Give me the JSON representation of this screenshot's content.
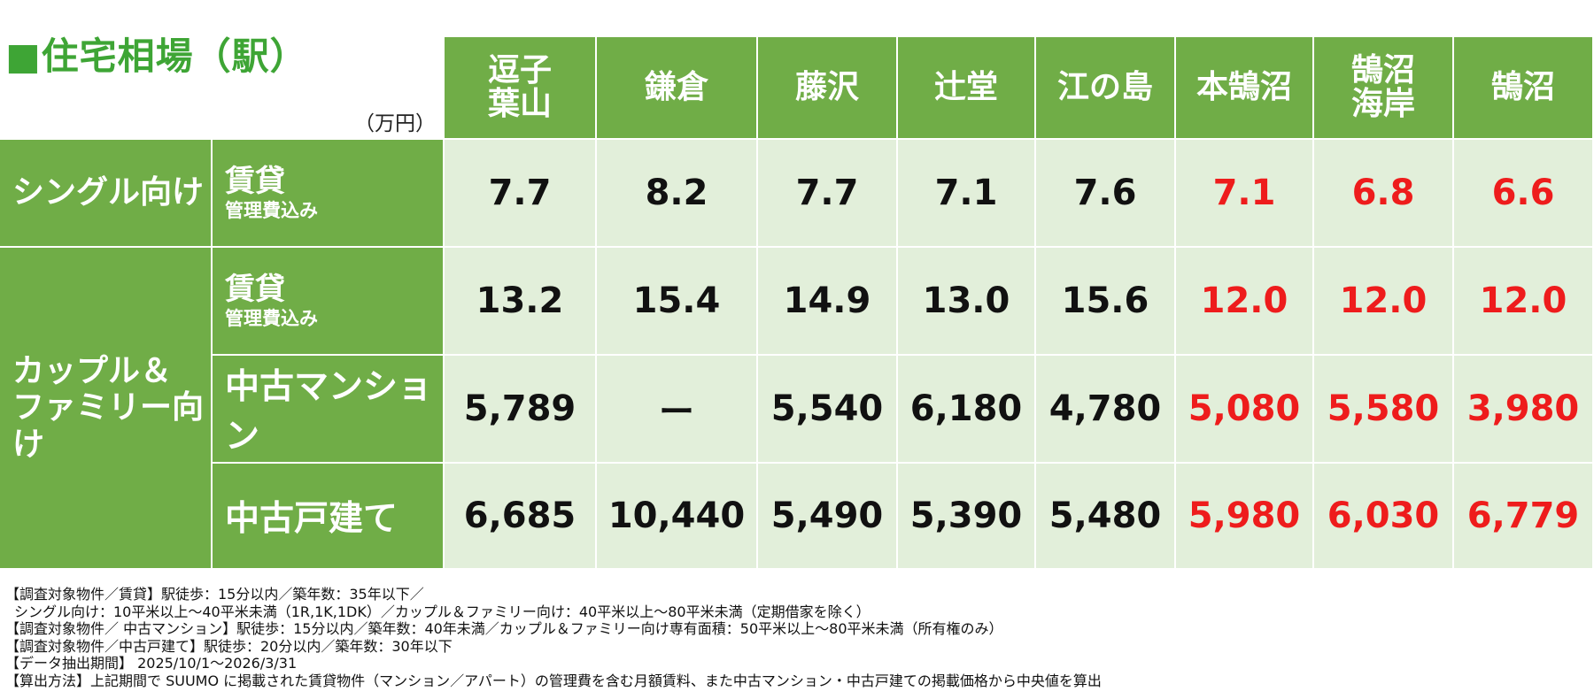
{
  "title": "■住宅相場（駅）",
  "unit": "（万円）",
  "stations": [
    "逗子\n葉山",
    "鎌倉",
    "藤沢",
    "辻堂",
    "江の島",
    "本鵠沼",
    "鵠沼\n海岸",
    "鵠沼"
  ],
  "row_groups": {
    "single": "シングル向け",
    "family": "カップル＆\nファミリー向け"
  },
  "row_labels": {
    "rent_top": "賃貸",
    "rent_sub": "管理費込み",
    "mansion": "中古マンション",
    "house": "中古戸建て"
  },
  "rows": {
    "single_rent": [
      "7.7",
      "8.2",
      "7.7",
      "7.1",
      "7.6",
      "7.1",
      "6.8",
      "6.6"
    ],
    "family_rent": [
      "13.2",
      "15.4",
      "14.9",
      "13.0",
      "15.6",
      "12.0",
      "12.0",
      "12.0"
    ],
    "used_mansion": [
      "5,789",
      "ー",
      "5,540",
      "6,180",
      "4,780",
      "5,080",
      "5,580",
      "3,980"
    ],
    "used_house": [
      "6,685",
      "10,440",
      "5,490",
      "5,390",
      "5,480",
      "5,980",
      "6,030",
      "6,779"
    ]
  },
  "colors": {
    "header_green": "#70ad47",
    "cell_bg": "#e2efda",
    "title_green": "#3ea535",
    "highlight_red": "#ee1c1c"
  },
  "notes": [
    "【調査対象物件／賃貸】駅徒歩：15分以内／築年数：35年以下／",
    "シングル向け：10平米以上～40平米未満（1R,1K,1DK）／カップル＆ファミリー向け：40平米以上～80平米未満（定期借家を除く）",
    "【調査対象物件／ 中古マンション】駅徒歩：15分以内／築年数：40年未満／カップル＆ファミリー向け専有面積：50平米以上～80平米未満（所有権のみ）",
    "【調査対象物件／中古戸建て】駅徒歩：20分以内／築年数：30年以下",
    "【データ抽出期間】 2025/10/1～2026/3/31",
    "【算出方法】上記期間で SUUMO に掲載された賃貸物件（マンション／アパート）の管理費を含む月額賃料、また中古マンション・中古戸建ての掲載価格から中央値を算出"
  ]
}
